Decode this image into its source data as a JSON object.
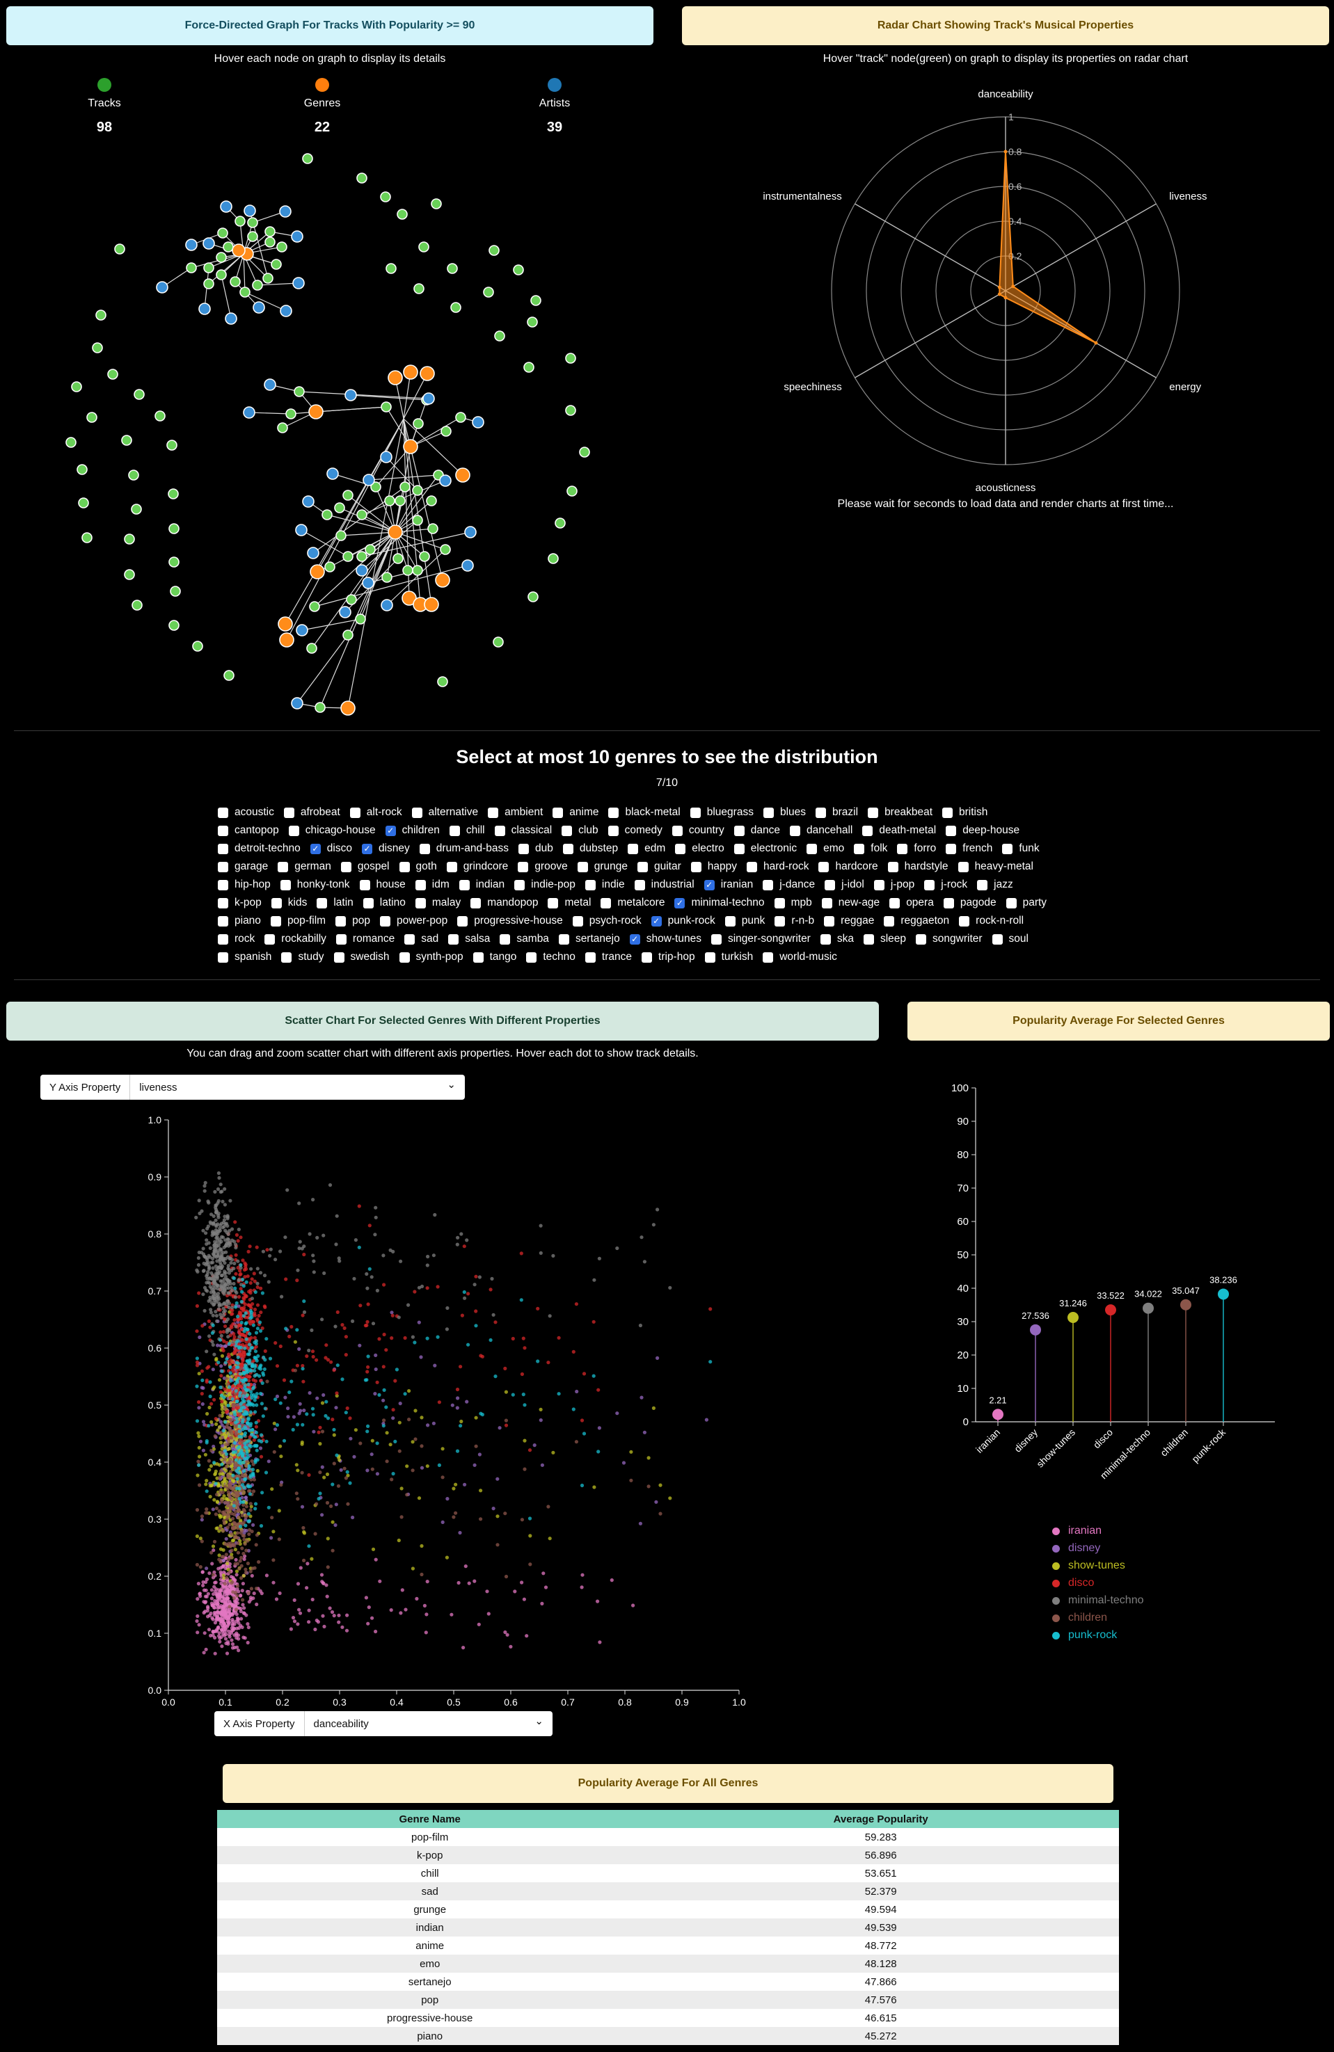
{
  "force_graph": {
    "title": "Force-Directed Graph For Tracks With Popularity >= 90",
    "hint": "Hover each node on graph to display its details",
    "stats": [
      {
        "label": "Tracks",
        "count": "98",
        "color": "#2ca02c"
      },
      {
        "label": "Genres",
        "count": "22",
        "color": "#ff7f0e"
      },
      {
        "label": "Artists",
        "count": "39",
        "color": "#1f77b4"
      }
    ]
  },
  "radar": {
    "title": "Radar Chart Showing Track's Musical Properties",
    "hint": "Hover \"track\" node(green) on graph to display its properties on radar chart",
    "wait_note": "Please wait for seconds to load data and render charts at first time..."
  },
  "genre_select": {
    "title": "Select at most 10 genres to see the distribution",
    "count": "7/10",
    "rows": [
      [
        [
          "acoustic",
          false
        ],
        [
          "afrobeat",
          false
        ],
        [
          "alt-rock",
          false
        ],
        [
          "alternative",
          false
        ],
        [
          "ambient",
          false
        ],
        [
          "anime",
          false
        ],
        [
          "black-metal",
          false
        ],
        [
          "bluegrass",
          false
        ],
        [
          "blues",
          false
        ],
        [
          "brazil",
          false
        ],
        [
          "breakbeat",
          false
        ],
        [
          "british",
          false
        ]
      ],
      [
        [
          "cantopop",
          false
        ],
        [
          "chicago-house",
          false
        ],
        [
          "children",
          true
        ],
        [
          "chill",
          false
        ],
        [
          "classical",
          false
        ],
        [
          "club",
          false
        ],
        [
          "comedy",
          false
        ],
        [
          "country",
          false
        ],
        [
          "dance",
          false
        ],
        [
          "dancehall",
          false
        ],
        [
          "death-metal",
          false
        ],
        [
          "deep-house",
          false
        ]
      ],
      [
        [
          "detroit-techno",
          false
        ],
        [
          "disco",
          true
        ],
        [
          "disney",
          true
        ],
        [
          "drum-and-bass",
          false
        ],
        [
          "dub",
          false
        ],
        [
          "dubstep",
          false
        ],
        [
          "edm",
          false
        ],
        [
          "electro",
          false
        ],
        [
          "electronic",
          false
        ],
        [
          "emo",
          false
        ],
        [
          "folk",
          false
        ],
        [
          "forro",
          false
        ],
        [
          "french",
          false
        ],
        [
          "funk",
          false
        ]
      ],
      [
        [
          "garage",
          false
        ],
        [
          "german",
          false
        ],
        [
          "gospel",
          false
        ],
        [
          "goth",
          false
        ],
        [
          "grindcore",
          false
        ],
        [
          "groove",
          false
        ],
        [
          "grunge",
          false
        ],
        [
          "guitar",
          false
        ],
        [
          "happy",
          false
        ],
        [
          "hard-rock",
          false
        ],
        [
          "hardcore",
          false
        ],
        [
          "hardstyle",
          false
        ],
        [
          "heavy-metal",
          false
        ]
      ],
      [
        [
          "hip-hop",
          false
        ],
        [
          "honky-tonk",
          false
        ],
        [
          "house",
          false
        ],
        [
          "idm",
          false
        ],
        [
          "indian",
          false
        ],
        [
          "indie-pop",
          false
        ],
        [
          "indie",
          false
        ],
        [
          "industrial",
          false
        ],
        [
          "iranian",
          true
        ],
        [
          "j-dance",
          false
        ],
        [
          "j-idol",
          false
        ],
        [
          "j-pop",
          false
        ],
        [
          "j-rock",
          false
        ],
        [
          "jazz",
          false
        ]
      ],
      [
        [
          "k-pop",
          false
        ],
        [
          "kids",
          false
        ],
        [
          "latin",
          false
        ],
        [
          "latino",
          false
        ],
        [
          "malay",
          false
        ],
        [
          "mandopop",
          false
        ],
        [
          "metal",
          false
        ],
        [
          "metalcore",
          false
        ],
        [
          "minimal-techno",
          true
        ],
        [
          "mpb",
          false
        ],
        [
          "new-age",
          false
        ],
        [
          "opera",
          false
        ],
        [
          "pagode",
          false
        ],
        [
          "party",
          false
        ]
      ],
      [
        [
          "piano",
          false
        ],
        [
          "pop-film",
          false
        ],
        [
          "pop",
          false
        ],
        [
          "power-pop",
          false
        ],
        [
          "progressive-house",
          false
        ],
        [
          "psych-rock",
          false
        ],
        [
          "punk-rock",
          true
        ],
        [
          "punk",
          false
        ],
        [
          "r-n-b",
          false
        ],
        [
          "reggae",
          false
        ],
        [
          "reggaeton",
          false
        ],
        [
          "rock-n-roll",
          false
        ]
      ],
      [
        [
          "rock",
          false
        ],
        [
          "rockabilly",
          false
        ],
        [
          "romance",
          false
        ],
        [
          "sad",
          false
        ],
        [
          "salsa",
          false
        ],
        [
          "samba",
          false
        ],
        [
          "sertanejo",
          false
        ],
        [
          "show-tunes",
          true
        ],
        [
          "singer-songwriter",
          false
        ],
        [
          "ska",
          false
        ],
        [
          "sleep",
          false
        ],
        [
          "songwriter",
          false
        ],
        [
          "soul",
          false
        ]
      ],
      [
        [
          "spanish",
          false
        ],
        [
          "study",
          false
        ],
        [
          "swedish",
          false
        ],
        [
          "synth-pop",
          false
        ],
        [
          "tango",
          false
        ],
        [
          "techno",
          false
        ],
        [
          "trance",
          false
        ],
        [
          "trip-hop",
          false
        ],
        [
          "turkish",
          false
        ],
        [
          "world-music",
          false
        ]
      ]
    ]
  },
  "scatter": {
    "title": "Scatter Chart For Selected Genres With Different Properties",
    "hint": "You can drag and zoom scatter chart with different axis properties. Hover each dot to show track details.",
    "y_axis_label": "Y Axis Property",
    "y_axis_value": "liveness",
    "x_axis_label": "X Axis Property",
    "x_axis_value": "danceability",
    "chevron": "⌄"
  },
  "popularity_selected": {
    "title": "Popularity Average For Selected Genres"
  },
  "popularity_all": {
    "title": "Popularity Average For All Genres",
    "col_name": "Genre Name",
    "col_avg": "Average Popularity",
    "rows": [
      [
        "pop-film",
        "59.283"
      ],
      [
        "k-pop",
        "56.896"
      ],
      [
        "chill",
        "53.651"
      ],
      [
        "sad",
        "52.379"
      ],
      [
        "grunge",
        "49.594"
      ],
      [
        "indian",
        "49.539"
      ],
      [
        "anime",
        "48.772"
      ],
      [
        "emo",
        "48.128"
      ],
      [
        "sertanejo",
        "47.866"
      ],
      [
        "pop",
        "47.576"
      ],
      [
        "progressive-house",
        "46.615"
      ],
      [
        "piano",
        "45.272"
      ]
    ]
  },
  "chart_data": [
    {
      "type": "radar",
      "axes": [
        "danceability",
        "liveness",
        "energy",
        "acousticness",
        "speechiness",
        "instrumentalness"
      ],
      "values": [
        0.8,
        0.05,
        0.6,
        0.0,
        0.0,
        0.0
      ],
      "rmax": 1,
      "ticks": [
        "0.2",
        "0.4",
        "0.6",
        "0.8",
        "1"
      ],
      "color": "#ff8c1a"
    },
    {
      "type": "scatter",
      "xlabel": "danceability",
      "ylabel": "liveness",
      "xlim": [
        0,
        1
      ],
      "ylim": [
        0,
        1
      ],
      "xticks": [
        "0.0",
        "0.1",
        "0.2",
        "0.3",
        "0.4",
        "0.5",
        "0.6",
        "0.7",
        "0.8",
        "0.9",
        "1.0"
      ],
      "yticks": [
        "0.0",
        "0.1",
        "0.2",
        "0.3",
        "0.4",
        "0.5",
        "0.6",
        "0.7",
        "0.8",
        "0.9",
        "1.0"
      ],
      "series": [
        {
          "name": "iranian",
          "color": "#e377c2"
        },
        {
          "name": "disney",
          "color": "#9467bd"
        },
        {
          "name": "show-tunes",
          "color": "#bcbd22"
        },
        {
          "name": "disco",
          "color": "#d62728"
        },
        {
          "name": "minimal-techno",
          "color": "#7f7f7f"
        },
        {
          "name": "children",
          "color": "#8c564b"
        },
        {
          "name": "punk-rock",
          "color": "#17becf"
        }
      ]
    },
    {
      "type": "lollipop",
      "title": "Popularity Average For Selected Genres",
      "categories": [
        "iranian",
        "disney",
        "show-tunes",
        "disco",
        "minimal-techno",
        "children",
        "punk-rock"
      ],
      "values": [
        2.21,
        27.536,
        31.246,
        33.522,
        34.022,
        35.047,
        38.236
      ],
      "labels": [
        "2.21",
        "27.536",
        "31.246",
        "33.522",
        "34.022",
        "35.047",
        "38.236"
      ],
      "colors": [
        "#e377c2",
        "#9467bd",
        "#bcbd22",
        "#d62728",
        "#7f7f7f",
        "#8c564b",
        "#17becf"
      ],
      "ylim": [
        0,
        100
      ],
      "yticks": [
        "0",
        "10",
        "20",
        "30",
        "40",
        "50",
        "60",
        "70",
        "80",
        "90",
        "100"
      ]
    }
  ]
}
